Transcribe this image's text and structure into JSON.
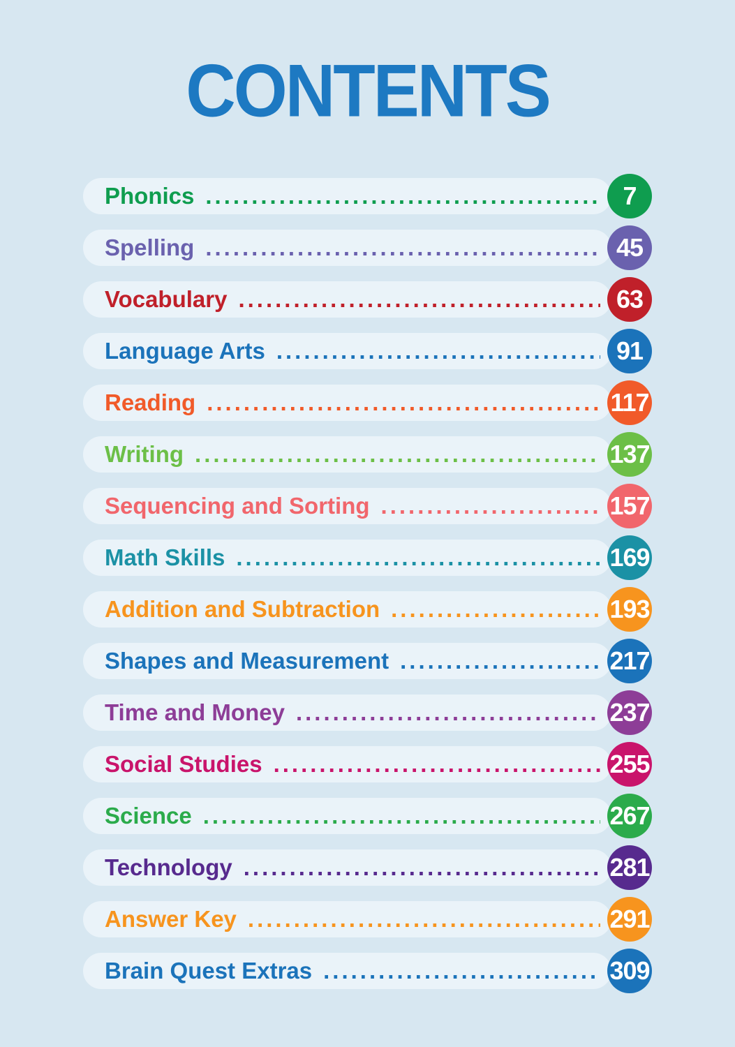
{
  "page": {
    "title": "CONTENTS",
    "title_color": "#1d79c2",
    "background_color": "#d7e7f1",
    "bar_color": "#eaf3f9",
    "page_number_text_color": "#ffffff",
    "leader_char": "."
  },
  "toc": {
    "entries": [
      {
        "label": "Phonics",
        "page": "7",
        "color": "#0f9d4f"
      },
      {
        "label": "Spelling",
        "page": "45",
        "color": "#6a61ae"
      },
      {
        "label": "Vocabulary",
        "page": "63",
        "color": "#c0202a"
      },
      {
        "label": "Language Arts",
        "page": "91",
        "color": "#1b73ba"
      },
      {
        "label": "Reading",
        "page": "117",
        "color": "#f15a29"
      },
      {
        "label": "Writing",
        "page": "137",
        "color": "#6cbf47"
      },
      {
        "label": "Sequencing and Sorting",
        "page": "157",
        "color": "#f1666c"
      },
      {
        "label": "Math Skills",
        "page": "169",
        "color": "#1b91a5"
      },
      {
        "label": "Addition and Subtraction",
        "page": "193",
        "color": "#f7941e"
      },
      {
        "label": "Shapes and Measurement",
        "page": "217",
        "color": "#1b73ba"
      },
      {
        "label": "Time and Money",
        "page": "237",
        "color": "#8d3d97"
      },
      {
        "label": "Social Studies",
        "page": "255",
        "color": "#c9146b"
      },
      {
        "label": "Science",
        "page": "267",
        "color": "#2bab4b"
      },
      {
        "label": "Technology",
        "page": "281",
        "color": "#572a8e"
      },
      {
        "label": "Answer Key",
        "page": "291",
        "color": "#f7941e"
      },
      {
        "label": "Brain Quest Extras",
        "page": "309",
        "color": "#1b73ba"
      }
    ]
  }
}
